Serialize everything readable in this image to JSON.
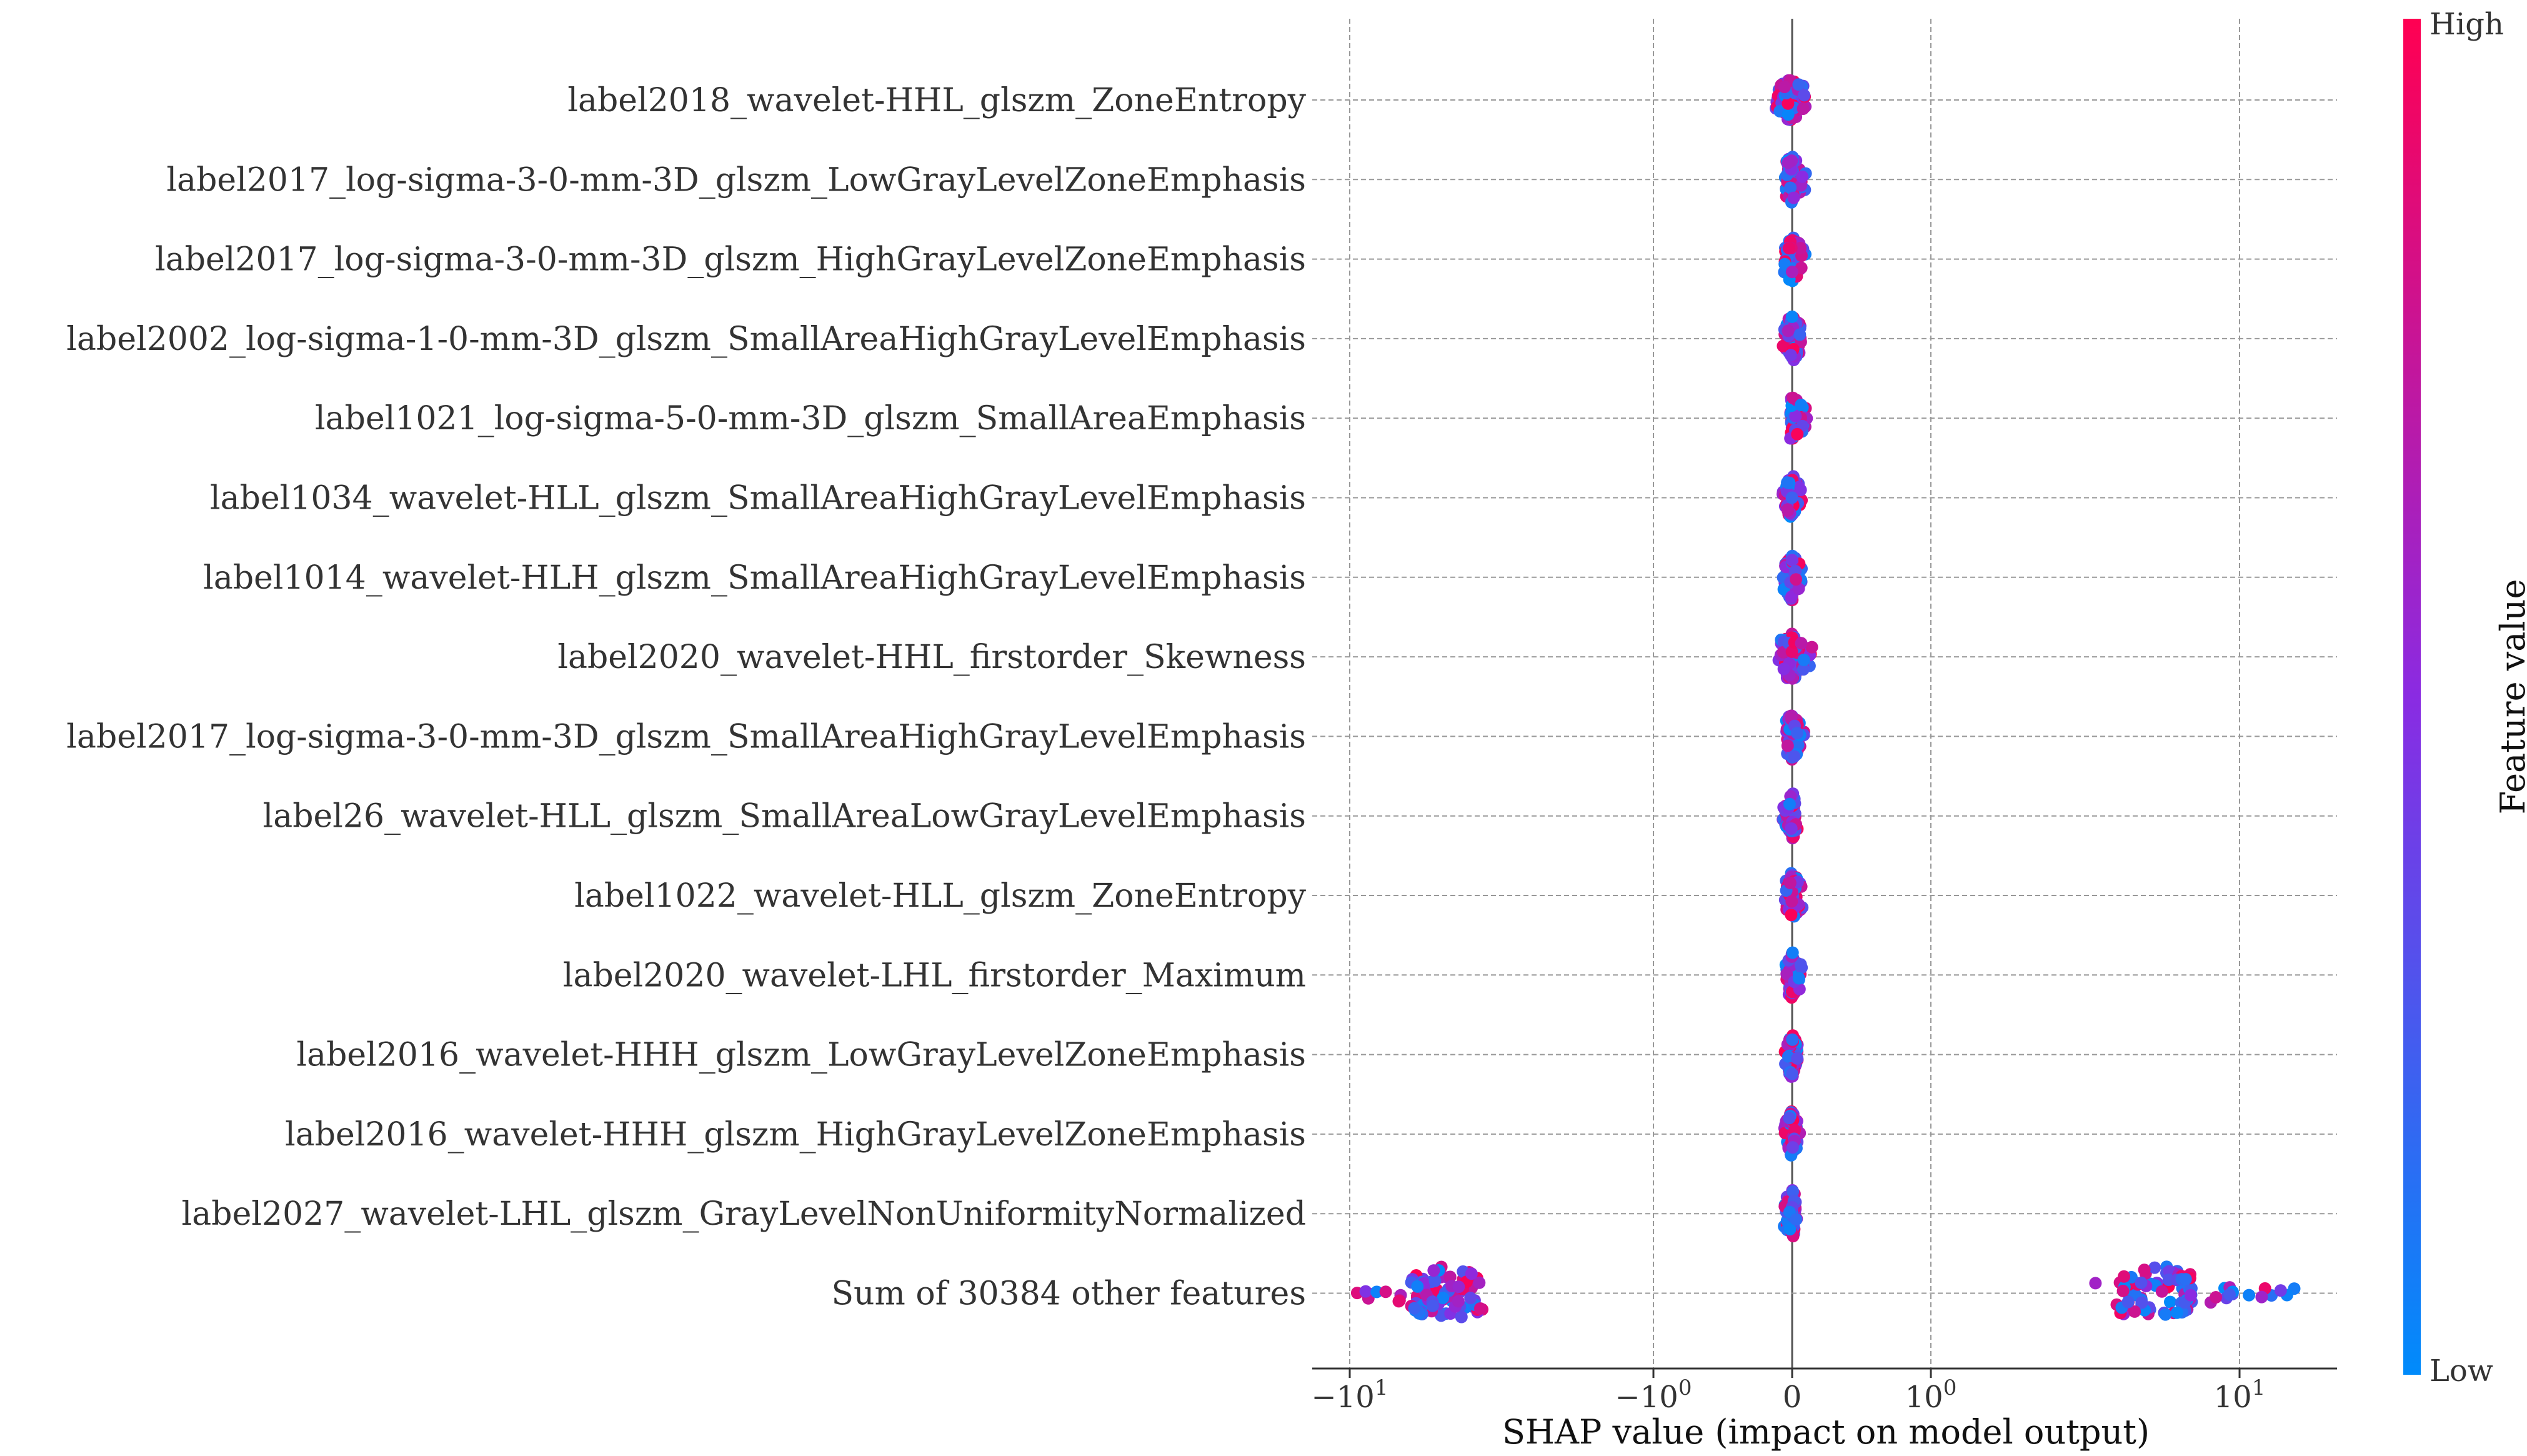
{
  "chart_data": {
    "type": "scatter",
    "plot_kind": "shap-beeswarm",
    "x_scale": "symlog",
    "features": [
      "label2018_wavelet-HHL_glszm_ZoneEntropy",
      "label2017_log-sigma-3-0-mm-3D_glszm_LowGrayLevelZoneEmphasis",
      "label2017_log-sigma-3-0-mm-3D_glszm_HighGrayLevelZoneEmphasis",
      "label2002_log-sigma-1-0-mm-3D_glszm_SmallAreaHighGrayLevelEmphasis",
      "label1021_log-sigma-5-0-mm-3D_glszm_SmallAreaEmphasis",
      "label1034_wavelet-HLL_glszm_SmallAreaHighGrayLevelEmphasis",
      "label1014_wavelet-HLH_glszm_SmallAreaHighGrayLevelEmphasis",
      "label2020_wavelet-HHL_firstorder_Skewness",
      "label2017_log-sigma-3-0-mm-3D_glszm_SmallAreaHighGrayLevelEmphasis",
      "label26_wavelet-HLL_glszm_SmallAreaLowGrayLevelEmphasis",
      "label1022_wavelet-HLL_glszm_ZoneEntropy",
      "label2020_wavelet-LHL_firstorder_Maximum",
      "label2016_wavelet-HHH_glszm_LowGrayLevelZoneEmphasis",
      "label2016_wavelet-HHH_glszm_HighGrayLevelZoneEmphasis",
      "label2027_wavelet-LHL_glszm_GrayLevelNonUniformityNormalized",
      "Sum of 30384 other features"
    ],
    "xticks": [
      {
        "value": -10,
        "base": "−10",
        "exp": "1"
      },
      {
        "value": -1,
        "base": "−10",
        "exp": "0"
      },
      {
        "value": 0,
        "base": "0",
        "exp": ""
      },
      {
        "value": 1,
        "base": "10",
        "exp": "0"
      },
      {
        "value": 10,
        "base": "10",
        "exp": "1"
      }
    ],
    "xlim": [
      -14,
      23
    ],
    "xlabel": "SHAP value (impact on model output)",
    "colorbar": {
      "label": "Feature value",
      "high": "High",
      "low": "Low",
      "high_color": "#ff0052",
      "mid_color": "#8a2be2",
      "low_color": "#008bfb"
    },
    "series": [
      {
        "center": 0.0,
        "spread_neg": 0.13,
        "spread_pos": 0.12,
        "width": 0.034
      },
      {
        "center": 0.0,
        "spread_neg": 0.06,
        "spread_pos": 0.11,
        "width": 0.036
      },
      {
        "center": 0.0,
        "spread_neg": 0.06,
        "spread_pos": 0.1,
        "width": 0.036
      },
      {
        "center": 0.0,
        "spread_neg": 0.09,
        "spread_pos": 0.08,
        "width": 0.036
      },
      {
        "center": 0.01,
        "spread_neg": 0.03,
        "spread_pos": 0.1,
        "width": 0.03
      },
      {
        "center": 0.0,
        "spread_neg": 0.08,
        "spread_pos": 0.08,
        "width": 0.034
      },
      {
        "center": 0.0,
        "spread_neg": 0.07,
        "spread_pos": 0.08,
        "width": 0.034
      },
      {
        "center": 0.0,
        "spread_neg": 0.1,
        "spread_pos": 0.2,
        "width": 0.03
      },
      {
        "center": 0.0,
        "spread_neg": 0.05,
        "spread_pos": 0.1,
        "width": 0.034
      },
      {
        "center": 0.0,
        "spread_neg": 0.08,
        "spread_pos": 0.04,
        "width": 0.034
      },
      {
        "center": 0.0,
        "spread_neg": 0.07,
        "spread_pos": 0.09,
        "width": 0.034
      },
      {
        "center": 0.0,
        "spread_neg": 0.05,
        "spread_pos": 0.08,
        "width": 0.034
      },
      {
        "center": 0.0,
        "spread_neg": 0.06,
        "spread_pos": 0.05,
        "width": 0.032
      },
      {
        "center": 0.0,
        "spread_neg": 0.06,
        "spread_pos": 0.06,
        "width": 0.034
      },
      {
        "center": 0.0,
        "spread_neg": 0.08,
        "spread_pos": 0.04,
        "width": 0.034
      },
      {
        "clusters": [
          {
            "center": -5.0,
            "min": -9.5,
            "max": -3.2
          },
          {
            "center": 5.5,
            "min": 3.0,
            "max": 16.0
          }
        ]
      }
    ]
  }
}
